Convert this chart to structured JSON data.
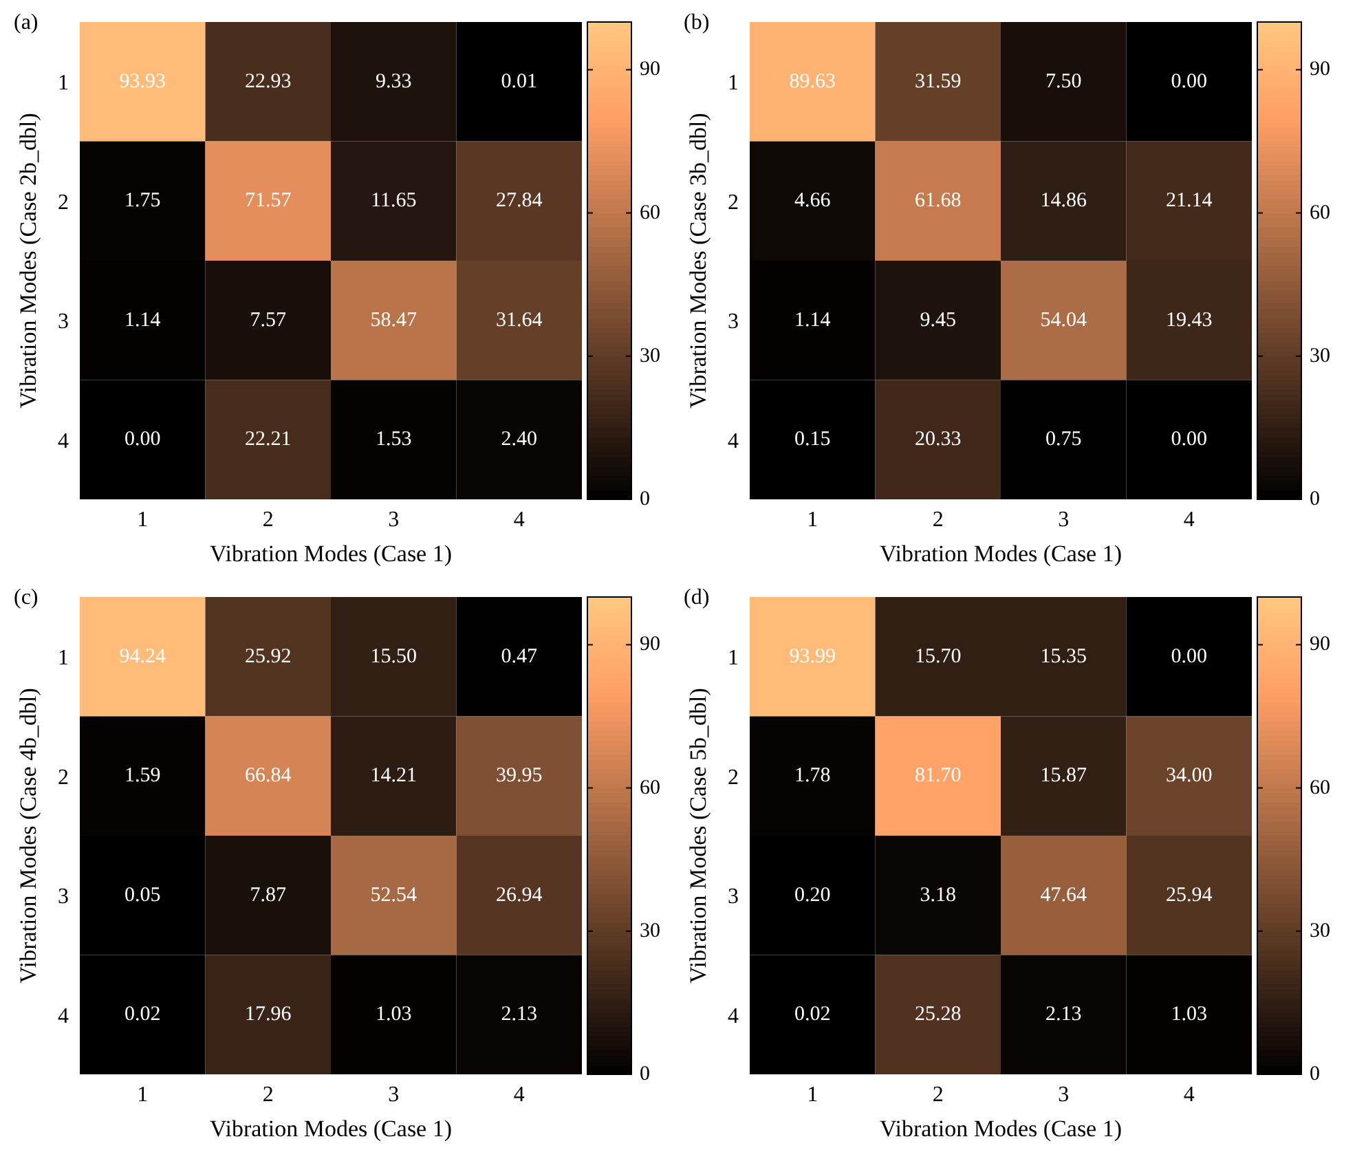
{
  "chart_data": [
    {
      "type": "heatmap",
      "title": "(a)",
      "xlabel": "Vibration Modes (Case 1)",
      "ylabel": "Vibration Modes (Case 2b_dbl)",
      "categories": [
        "1",
        "2",
        "3",
        "4"
      ],
      "y_categories": [
        "1",
        "2",
        "3",
        "4"
      ],
      "cells": [
        [
          93.93,
          22.93,
          9.33,
          0.01
        ],
        [
          1.75,
          71.57,
          11.65,
          27.84
        ],
        [
          1.14,
          7.57,
          58.47,
          31.64
        ],
        [
          0.0,
          22.21,
          1.53,
          2.4
        ]
      ],
      "cell_labels": [
        [
          "93.93",
          "22.93",
          "9.33",
          "0.01"
        ],
        [
          "1.75",
          "71.57",
          "11.65",
          "27.84"
        ],
        [
          "1.14",
          "7.57",
          "58.47",
          "31.64"
        ],
        [
          "0.00",
          "22.21",
          "1.53",
          "2.40"
        ]
      ],
      "clim": [
        0,
        100
      ],
      "cticks": [
        0,
        30,
        60,
        90
      ]
    },
    {
      "type": "heatmap",
      "title": "(b)",
      "xlabel": "Vibration Modes (Case 1)",
      "ylabel": "Vibration Modes (Case 3b_dbl)",
      "categories": [
        "1",
        "2",
        "3",
        "4"
      ],
      "y_categories": [
        "1",
        "2",
        "3",
        "4"
      ],
      "cells": [
        [
          89.63,
          31.59,
          7.5,
          0.0
        ],
        [
          4.66,
          61.68,
          14.86,
          21.14
        ],
        [
          1.14,
          9.45,
          54.04,
          19.43
        ],
        [
          0.15,
          20.33,
          0.75,
          0.0
        ]
      ],
      "cell_labels": [
        [
          "89.63",
          "31.59",
          "7.50",
          "0.00"
        ],
        [
          "4.66",
          "61.68",
          "14.86",
          "21.14"
        ],
        [
          "1.14",
          "9.45",
          "54.04",
          "19.43"
        ],
        [
          "0.15",
          "20.33",
          "0.75",
          "0.00"
        ]
      ],
      "clim": [
        0,
        100
      ],
      "cticks": [
        0,
        30,
        60,
        90
      ]
    },
    {
      "type": "heatmap",
      "title": "(c)",
      "xlabel": "Vibration Modes (Case 1)",
      "ylabel": "Vibration Modes (Case 4b_dbl)",
      "categories": [
        "1",
        "2",
        "3",
        "4"
      ],
      "y_categories": [
        "1",
        "2",
        "3",
        "4"
      ],
      "cells": [
        [
          94.24,
          25.92,
          15.5,
          0.47
        ],
        [
          1.59,
          66.84,
          14.21,
          39.95
        ],
        [
          0.05,
          7.87,
          52.54,
          26.94
        ],
        [
          0.02,
          17.96,
          1.03,
          2.13
        ]
      ],
      "cell_labels": [
        [
          "94.24",
          "25.92",
          "15.50",
          "0.47"
        ],
        [
          "1.59",
          "66.84",
          "14.21",
          "39.95"
        ],
        [
          "0.05",
          "7.87",
          "52.54",
          "26.94"
        ],
        [
          "0.02",
          "17.96",
          "1.03",
          "2.13"
        ]
      ],
      "clim": [
        0,
        100
      ],
      "cticks": [
        0,
        30,
        60,
        90
      ]
    },
    {
      "type": "heatmap",
      "title": "(d)",
      "xlabel": "Vibration Modes (Case 1)",
      "ylabel": "Vibration Modes (Case 5b_dbl)",
      "categories": [
        "1",
        "2",
        "3",
        "4"
      ],
      "y_categories": [
        "1",
        "2",
        "3",
        "4"
      ],
      "cells": [
        [
          93.99,
          15.7,
          15.35,
          0.0
        ],
        [
          1.78,
          81.7,
          15.87,
          34.0
        ],
        [
          0.2,
          3.18,
          47.64,
          25.94
        ],
        [
          0.02,
          25.28,
          2.13,
          1.03
        ]
      ],
      "cell_labels": [
        [
          "93.99",
          "15.70",
          "15.35",
          "0.00"
        ],
        [
          "1.78",
          "81.70",
          "15.87",
          "34.00"
        ],
        [
          "0.20",
          "3.18",
          "47.64",
          "25.94"
        ],
        [
          "0.02",
          "25.28",
          "2.13",
          "1.03"
        ]
      ],
      "clim": [
        0,
        100
      ],
      "cticks": [
        0,
        30,
        60,
        90
      ]
    }
  ]
}
